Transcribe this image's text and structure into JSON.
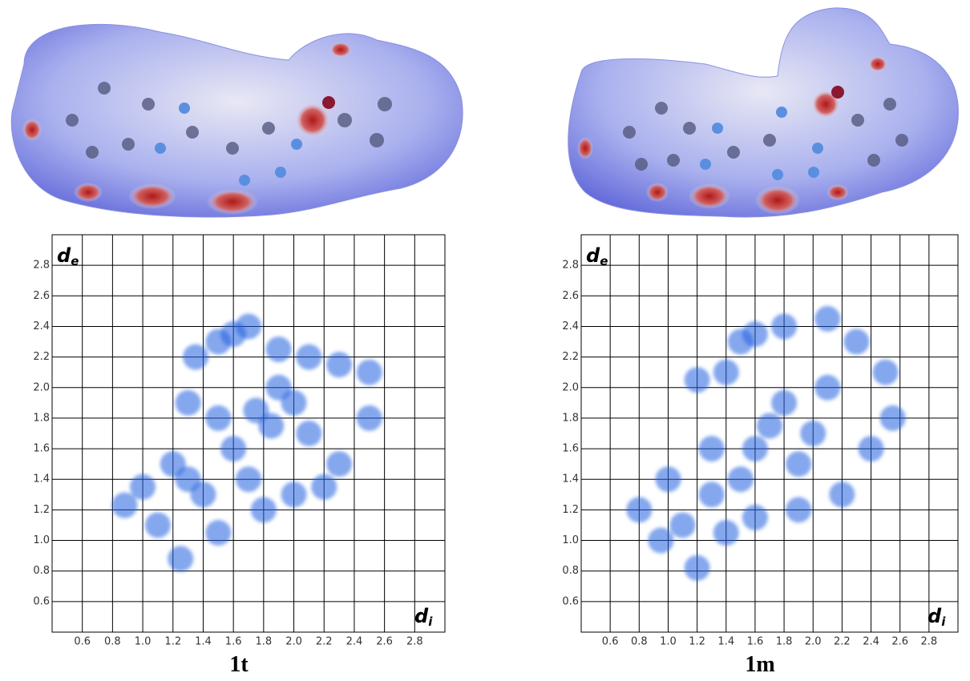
{
  "chart_data": [
    {
      "type": "scatter",
      "title": "1t",
      "xlabel_main": "d",
      "xlabel_sub": "i",
      "ylabel_main": "d",
      "ylabel_sub": "e",
      "color": "#1f5fe0",
      "grid": true,
      "xlim": [
        0.4,
        3.0
      ],
      "ylim": [
        0.4,
        3.0
      ],
      "xticks": [
        0.6,
        0.8,
        {
          "value": 1,
          "label": "1.0"
        },
        1.2,
        1.4,
        1.6,
        1.8,
        {
          "value": 2,
          "label": "2.0"
        },
        2.2,
        2.4,
        2.6,
        2.8
      ],
      "yticks": [
        0.6,
        0.8,
        {
          "value": 1,
          "label": "1.0"
        },
        1.2,
        1.4,
        1.6,
        1.8,
        {
          "value": 2,
          "label": "2.0"
        },
        2.2,
        2.4,
        2.6,
        2.8
      ],
      "x": [
        0.88,
        1.0,
        1.1,
        1.2,
        1.3,
        1.35,
        1.5,
        1.6,
        1.7,
        1.9,
        2.1,
        2.3,
        2.5,
        2.5,
        2.3,
        2.2,
        2.0,
        1.8,
        1.5,
        1.25,
        1.4,
        1.6,
        1.75,
        1.85,
        1.5,
        2.0,
        1.3,
        1.7,
        2.1,
        1.9
      ],
      "values": [
        1.23,
        1.35,
        1.1,
        1.5,
        1.9,
        2.2,
        2.3,
        2.35,
        2.4,
        2.25,
        2.2,
        2.15,
        2.1,
        1.8,
        1.5,
        1.35,
        1.3,
        1.2,
        1.05,
        0.88,
        1.3,
        1.6,
        1.85,
        1.75,
        1.8,
        1.9,
        1.4,
        1.4,
        1.7,
        2.0
      ]
    },
    {
      "type": "scatter",
      "title": "1m",
      "xlabel_main": "d",
      "xlabel_sub": "i",
      "ylabel_main": "d",
      "ylabel_sub": "e",
      "color": "#1f5fe0",
      "grid": true,
      "xlim": [
        0.4,
        3.0
      ],
      "ylim": [
        0.4,
        3.0
      ],
      "xticks": [
        0.6,
        0.8,
        {
          "value": 1,
          "label": "1.0"
        },
        1.2,
        1.4,
        1.6,
        1.8,
        {
          "value": 2,
          "label": "2.0"
        },
        2.2,
        2.4,
        2.6,
        2.8
      ],
      "yticks": [
        0.6,
        0.8,
        {
          "value": 1,
          "label": "1.0"
        },
        1.2,
        1.4,
        1.6,
        1.8,
        {
          "value": 2,
          "label": "2.0"
        },
        2.2,
        2.4,
        2.6,
        2.8
      ],
      "x": [
        0.8,
        1.0,
        0.95,
        1.1,
        1.2,
        1.2,
        1.3,
        1.4,
        1.5,
        1.6,
        1.8,
        2.1,
        2.3,
        2.5,
        2.55,
        2.4,
        2.2,
        1.9,
        1.6,
        1.4,
        1.7,
        1.8,
        1.6,
        2.0,
        1.5,
        2.1,
        1.3,
        1.9
      ],
      "values": [
        1.2,
        1.4,
        1.0,
        1.1,
        0.82,
        2.05,
        1.6,
        2.1,
        2.3,
        2.35,
        2.4,
        2.45,
        2.3,
        2.1,
        1.8,
        1.6,
        1.3,
        1.2,
        1.15,
        1.05,
        1.75,
        1.9,
        1.6,
        1.7,
        1.4,
        2.0,
        1.3,
        1.5
      ]
    }
  ]
}
